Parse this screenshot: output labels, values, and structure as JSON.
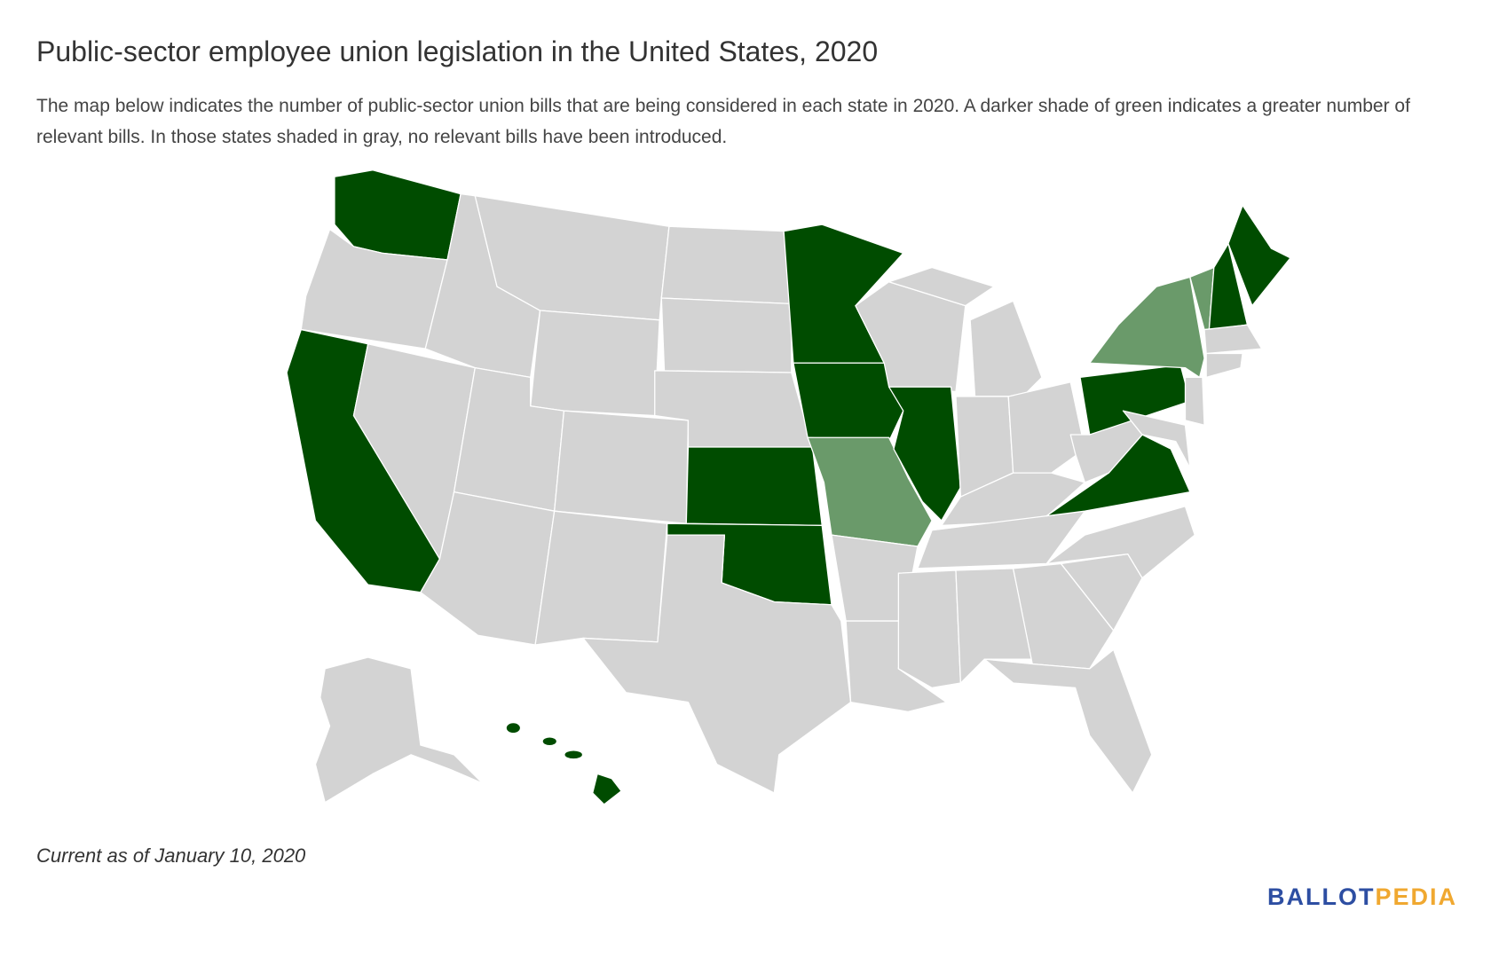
{
  "header": {
    "title": "Public-sector employee union legislation in the United States, 2020",
    "description": "The map below indicates the number of public-sector union bills that are being considered in each state in 2020. A darker shade of green indicates a greater number of relevant bills. In those states shaded in gray, no relevant bills have been introduced."
  },
  "footer": {
    "note": "Current as of January 10, 2020",
    "logo": {
      "part1": "BALLOT",
      "part2": "PEDIA"
    }
  }
}
